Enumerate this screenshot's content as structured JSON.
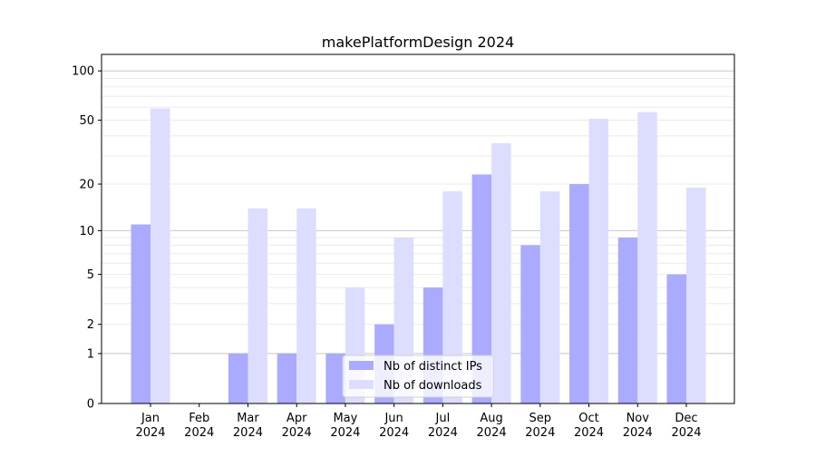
{
  "chart_data": {
    "type": "bar",
    "title": "makePlatformDesign 2024",
    "xlabel": "",
    "ylabel": "",
    "yscale": "log(y+1)",
    "ylim": [
      0,
      126
    ],
    "yticks": [
      0,
      1,
      2,
      5,
      10,
      20,
      50,
      100
    ],
    "grid": true,
    "legend_position": "lower center",
    "categories": [
      "Jan\n2024",
      "Feb\n2024",
      "Mar\n2024",
      "Apr\n2024",
      "May\n2024",
      "Jun\n2024",
      "Jul\n2024",
      "Aug\n2024",
      "Sep\n2024",
      "Oct\n2024",
      "Nov\n2024",
      "Dec\n2024"
    ],
    "series": [
      {
        "name": "Nb of distinct IPs",
        "color": "#aaaaff",
        "values": [
          11,
          0,
          1,
          1,
          1,
          2,
          4,
          23,
          8,
          20,
          9,
          5
        ]
      },
      {
        "name": "Nb of downloads",
        "color": "#ddddff",
        "values": [
          59,
          0,
          14,
          14,
          4,
          9,
          18,
          36,
          18,
          51,
          56,
          19
        ]
      }
    ]
  }
}
